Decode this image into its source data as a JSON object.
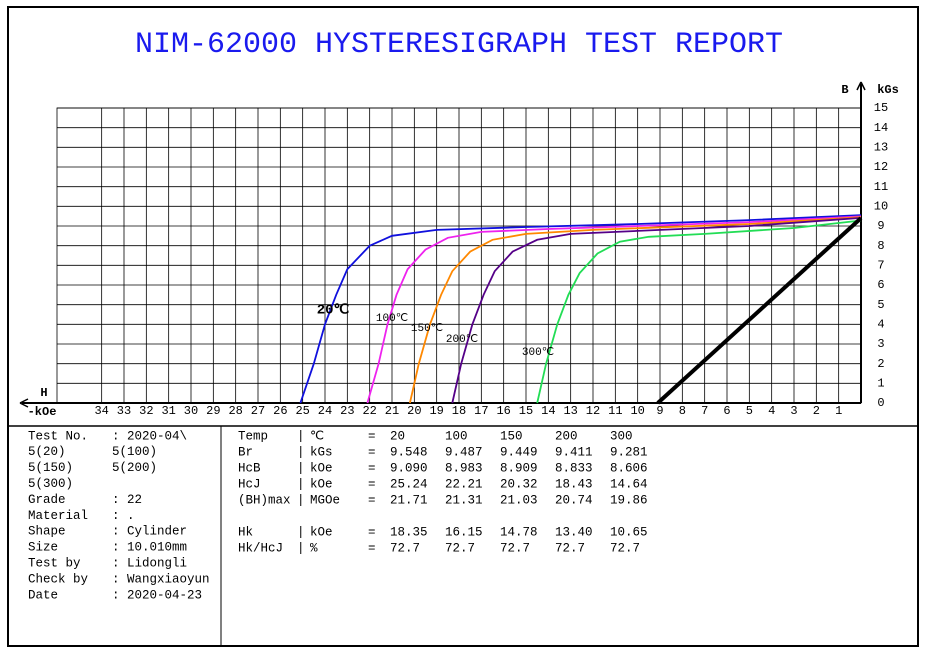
{
  "chart_data": {
    "type": "line",
    "title": "NIM-62000 HYSTERESIGRAPH TEST REPORT",
    "y_label": "B",
    "y_unit": "kGs",
    "x_label": "H",
    "x_unit": "-kOe",
    "xlim": [
      36,
      0
    ],
    "ylim": [
      0,
      15
    ],
    "xticks": [
      34,
      33,
      32,
      31,
      30,
      29,
      28,
      27,
      26,
      25,
      24,
      23,
      22,
      21,
      20,
      19,
      18,
      17,
      16,
      15,
      14,
      13,
      12,
      11,
      10,
      9,
      8,
      7,
      6,
      5,
      4,
      3,
      2,
      1
    ],
    "yticks": [
      0,
      1,
      2,
      3,
      4,
      5,
      6,
      7,
      8,
      9,
      10,
      11,
      12,
      13,
      14,
      15
    ],
    "grid": true,
    "series": [
      {
        "name": "20℃",
        "color": "#1010dd",
        "x": [
          25.1,
          24.5,
          24,
          23.5,
          23,
          22,
          21,
          19,
          15,
          10,
          5,
          0
        ],
        "values": [
          0,
          2,
          4,
          5.5,
          6.8,
          8,
          8.5,
          8.8,
          8.95,
          9.1,
          9.3,
          9.55
        ]
      },
      {
        "name": "100℃",
        "color": "#ee22ee",
        "x": [
          22.1,
          21.6,
          21.2,
          20.8,
          20.3,
          19.5,
          18.5,
          17,
          14,
          10,
          5,
          0
        ],
        "values": [
          0,
          2,
          4,
          5.5,
          6.8,
          7.8,
          8.4,
          8.7,
          8.85,
          9,
          9.2,
          9.49
        ]
      },
      {
        "name": "150℃",
        "color": "#ff8800",
        "x": [
          20.2,
          19.8,
          19.3,
          18.8,
          18.3,
          17.5,
          16.5,
          15,
          12,
          5,
          0
        ],
        "values": [
          0,
          2,
          4,
          5.5,
          6.7,
          7.7,
          8.3,
          8.6,
          8.8,
          9.1,
          9.45
        ]
      },
      {
        "name": "200℃",
        "color": "#550088",
        "x": [
          18.3,
          17.9,
          17.4,
          16.9,
          16.4,
          15.6,
          14.5,
          13,
          10,
          5,
          0
        ],
        "values": [
          0,
          2,
          4,
          5.5,
          6.7,
          7.7,
          8.3,
          8.6,
          8.75,
          9,
          9.41
        ]
      },
      {
        "name": "300℃",
        "color": "#22dd55",
        "x": [
          14.5,
          14.1,
          13.6,
          13.1,
          12.6,
          11.8,
          10.8,
          9.5,
          7,
          3,
          0
        ],
        "values": [
          0,
          2,
          4,
          5.5,
          6.6,
          7.6,
          8.2,
          8.45,
          8.6,
          8.9,
          9.28
        ]
      },
      {
        "color": "#000000",
        "x": [
          9.1,
          0
        ],
        "values": [
          0,
          9.4
        ]
      }
    ]
  },
  "report": {
    "left": [
      [
        "Test No.",
        ": 2020-04\\"
      ],
      [
        "5(20)",
        "5(100)"
      ],
      [
        "5(150)",
        "5(200)"
      ],
      [
        "5(300)"
      ],
      [
        "Grade",
        ": 22"
      ],
      [
        "Material",
        ": ."
      ],
      [
        "Shape",
        ": Cylinder"
      ],
      [
        "Size",
        ": 10.010mm"
      ],
      [
        "Test by",
        ": Lidongli"
      ],
      [
        "Check by",
        ": Wangxiaoyun"
      ],
      [
        "Date",
        ": 2020-04-23"
      ]
    ],
    "table": [
      [
        "Temp",
        "|",
        "℃",
        "=",
        "20",
        "100",
        "150",
        "200",
        "300"
      ],
      [
        "Br",
        "|",
        "kGs",
        "=",
        "9.548",
        "9.487",
        "9.449",
        "9.411",
        "9.281"
      ],
      [
        "HcB",
        "|",
        "kOe",
        "=",
        "9.090",
        "8.983",
        "8.909",
        "8.833",
        "8.606"
      ],
      [
        "HcJ",
        "|",
        "kOe",
        "=",
        "25.24",
        "22.21",
        "20.32",
        "18.43",
        "14.64"
      ],
      [
        "(BH)max",
        "|",
        "MGOe",
        "=",
        "21.71",
        "21.31",
        "21.03",
        "20.74",
        "19.86"
      ],
      [
        "Hk",
        "|",
        "kOe",
        "=",
        "18.35",
        "16.15",
        "14.78",
        "13.40",
        "10.65"
      ],
      [
        "Hk/HcJ",
        "|",
        "%",
        "=",
        "72.7",
        "72.7",
        "72.7",
        "72.7",
        "72.7"
      ]
    ]
  }
}
